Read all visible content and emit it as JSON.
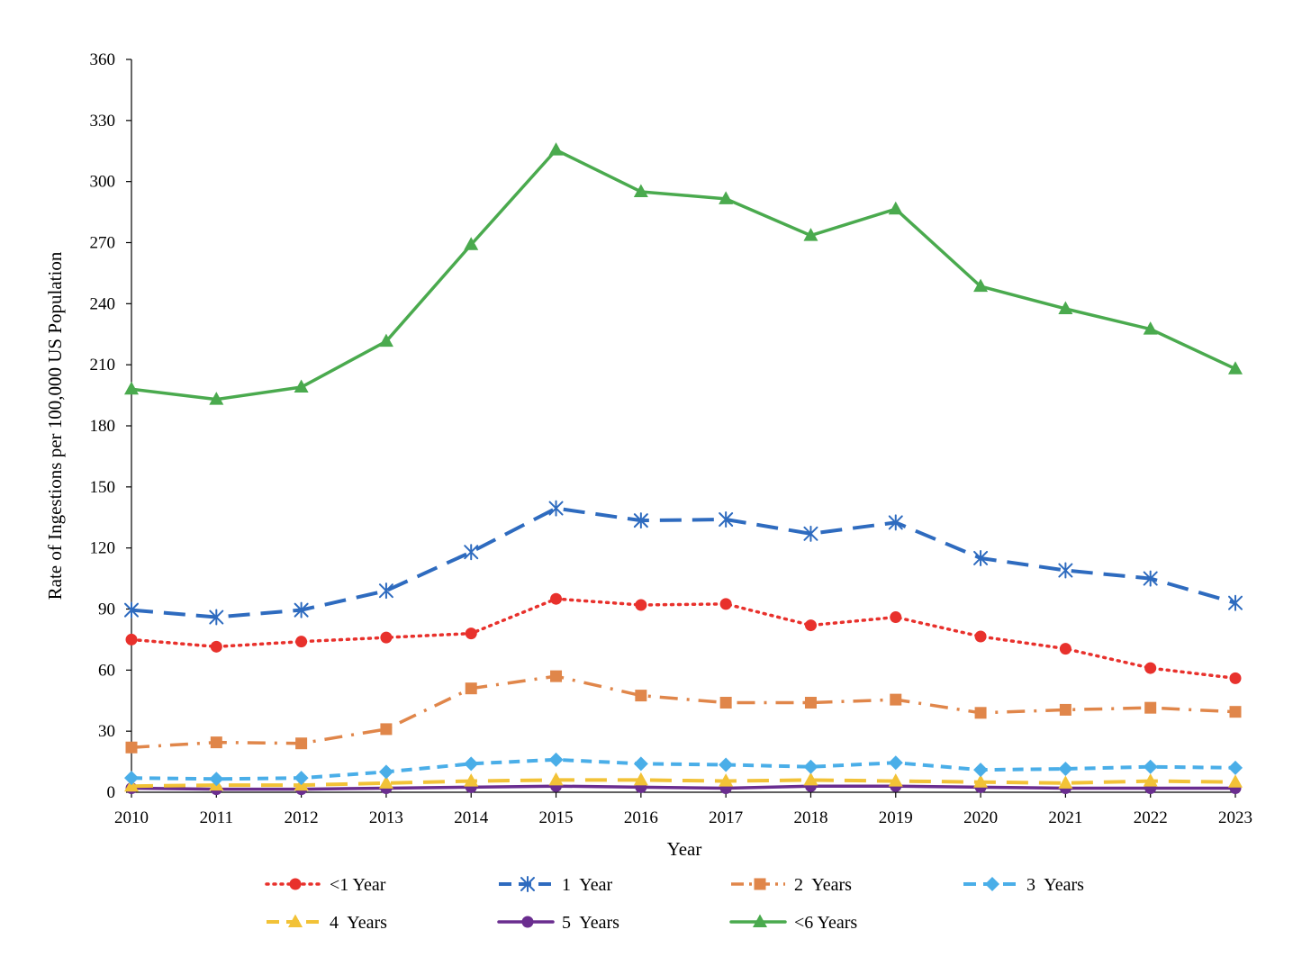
{
  "chart_data": {
    "type": "line",
    "title": "",
    "xlabel": "Year",
    "ylabel": "Rate of Ingestions per 100,000 US Population",
    "ylim": [
      0,
      360
    ],
    "yticks": [
      0,
      30,
      60,
      90,
      120,
      150,
      180,
      210,
      240,
      270,
      300,
      330,
      360
    ],
    "grid": false,
    "legend_position": "bottom",
    "categories": [
      "2010",
      "2011",
      "2012",
      "2013",
      "2014",
      "2015",
      "2016",
      "2017",
      "2018",
      "2019",
      "2020",
      "2021",
      "2022",
      "2023"
    ],
    "series": [
      {
        "name": "<1 Year",
        "color": "#e8312c",
        "marker": "circle",
        "dash": "dot",
        "values": [
          75,
          71.5,
          74,
          76,
          78,
          95,
          92,
          92.5,
          82,
          86,
          76.5,
          70.5,
          61,
          56
        ]
      },
      {
        "name": "1  Year",
        "color": "#2e6bbf",
        "marker": "asterisk",
        "dash": "longdash",
        "values": [
          89.5,
          86,
          89.5,
          99,
          118,
          139.5,
          133.5,
          134,
          127,
          132.5,
          115,
          109,
          105,
          93
        ]
      },
      {
        "name": "2  Years",
        "color": "#e0864a",
        "marker": "square",
        "dash": "dashdot",
        "values": [
          22,
          24.5,
          24,
          31,
          51,
          57,
          47.5,
          44,
          44,
          45.5,
          39,
          40.5,
          41.5,
          39.5
        ]
      },
      {
        "name": "3  Years",
        "color": "#4aaee8",
        "marker": "diamond",
        "dash": "dash",
        "values": [
          7,
          6.5,
          7,
          10,
          14,
          16,
          14,
          13.5,
          12.5,
          14.5,
          11,
          11.5,
          12.5,
          12
        ]
      },
      {
        "name": "4  Years",
        "color": "#f2c237",
        "marker": "triangle",
        "dash": "longdash",
        "values": [
          3,
          3.5,
          3.5,
          4.5,
          5.5,
          6,
          6,
          5.5,
          6,
          5.5,
          5,
          4.5,
          5.5,
          5
        ]
      },
      {
        "name": "5  Years",
        "color": "#6a2d8f",
        "marker": "circle",
        "dash": "solid",
        "values": [
          2,
          1.5,
          1.5,
          2,
          2.5,
          3,
          2.5,
          2,
          3,
          3,
          2.5,
          2,
          2,
          2
        ]
      },
      {
        "name": "<6 Years",
        "color": "#4aaa4e",
        "marker": "triangle",
        "dash": "solid",
        "values": [
          198,
          193,
          199,
          221.5,
          269,
          315.5,
          295,
          291.5,
          273.5,
          286.5,
          248.5,
          237.5,
          227.5,
          208
        ]
      }
    ]
  }
}
